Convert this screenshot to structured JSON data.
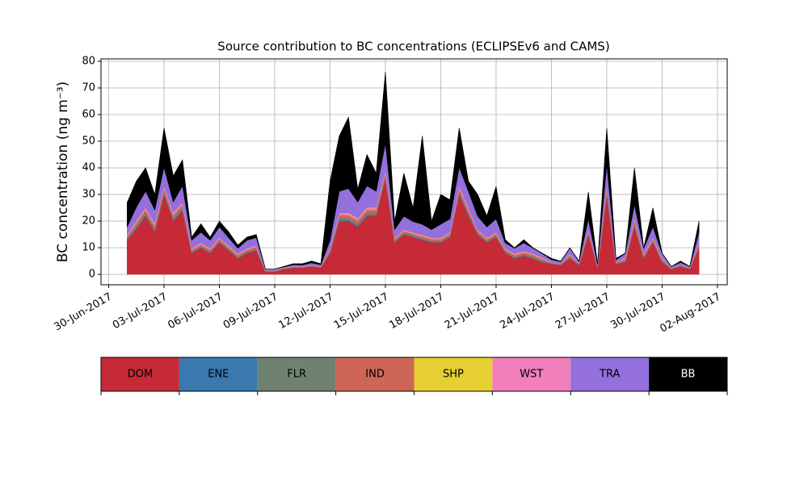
{
  "chart_data": {
    "type": "stacked_area",
    "title": "Source contribution to BC concentrations (ECLIPSEv6 and CAMS)",
    "y_label": "BC concentration (ng m⁻³)",
    "x": [
      "2017-07-01T00:00",
      "2017-07-01T12:00",
      "2017-07-02T00:00",
      "2017-07-02T12:00",
      "2017-07-03T00:00",
      "2017-07-03T12:00",
      "2017-07-04T00:00",
      "2017-07-04T12:00",
      "2017-07-05T00:00",
      "2017-07-05T12:00",
      "2017-07-06T00:00",
      "2017-07-06T12:00",
      "2017-07-07T00:00",
      "2017-07-07T12:00",
      "2017-07-08T00:00",
      "2017-07-08T12:00",
      "2017-07-09T00:00",
      "2017-07-09T12:00",
      "2017-07-10T00:00",
      "2017-07-10T12:00",
      "2017-07-11T00:00",
      "2017-07-11T12:00",
      "2017-07-12T00:00",
      "2017-07-12T12:00",
      "2017-07-13T00:00",
      "2017-07-13T12:00",
      "2017-07-14T00:00",
      "2017-07-14T12:00",
      "2017-07-15T00:00",
      "2017-07-15T12:00",
      "2017-07-16T00:00",
      "2017-07-16T12:00",
      "2017-07-17T00:00",
      "2017-07-17T12:00",
      "2017-07-18T00:00",
      "2017-07-18T12:00",
      "2017-07-19T00:00",
      "2017-07-19T12:00",
      "2017-07-20T00:00",
      "2017-07-20T12:00",
      "2017-07-21T00:00",
      "2017-07-21T12:00",
      "2017-07-22T00:00",
      "2017-07-22T12:00",
      "2017-07-23T00:00",
      "2017-07-23T12:00",
      "2017-07-24T00:00",
      "2017-07-24T12:00",
      "2017-07-25T00:00",
      "2017-07-25T12:00",
      "2017-07-26T00:00",
      "2017-07-26T12:00",
      "2017-07-27T00:00",
      "2017-07-27T12:00",
      "2017-07-28T00:00",
      "2017-07-28T12:00",
      "2017-07-29T00:00",
      "2017-07-29T12:00",
      "2017-07-30T00:00",
      "2017-07-30T12:00",
      "2017-07-31T00:00",
      "2017-07-31T12:00",
      "2017-08-01T00:00"
    ],
    "series": [
      {
        "name": "DOM",
        "color": "#c62a37",
        "values": [
          13,
          17,
          22,
          16,
          30,
          20,
          24,
          8,
          10,
          8,
          12,
          9,
          6,
          8,
          9,
          1,
          1,
          2,
          2.5,
          2.5,
          3,
          2.5,
          8,
          20,
          20,
          18,
          22,
          22,
          36,
          12,
          15,
          14,
          13,
          12,
          12,
          14,
          30,
          22,
          15,
          12,
          14,
          8,
          6,
          7,
          6,
          4.5,
          4,
          3.5,
          6,
          3.5,
          15,
          2.5,
          30,
          4,
          4.5,
          18,
          6,
          12,
          4.5,
          2,
          3,
          2,
          10
        ]
      },
      {
        "name": "ENE",
        "color": "#3a78b0",
        "values": [
          0.2,
          0.4,
          0.4,
          0.4,
          0.4,
          0.4,
          0.4,
          0.2,
          0.2,
          0.2,
          0.2,
          0.2,
          0.2,
          0.2,
          0.2,
          0.1,
          0.1,
          0.1,
          0.1,
          0.1,
          0.1,
          0.1,
          0.2,
          0.4,
          0.4,
          0.4,
          0.4,
          0.4,
          0.4,
          0.2,
          0.2,
          0.2,
          0.2,
          0.2,
          0.2,
          0.2,
          0.4,
          0.4,
          0.2,
          0.2,
          0.2,
          0.2,
          0.2,
          0.2,
          0.2,
          0.2,
          0.1,
          0.1,
          0.2,
          0.1,
          0.2,
          0.1,
          0.4,
          0.1,
          0.2,
          0.4,
          0.2,
          0.2,
          0.2,
          0.1,
          0.1,
          0.1,
          0.2
        ]
      },
      {
        "name": "FLR",
        "color": "#6f8170",
        "values": [
          0.4,
          0.7,
          0.7,
          0.7,
          0.7,
          0.7,
          0.7,
          0.4,
          0.4,
          0.4,
          0.4,
          0.4,
          0.4,
          0.4,
          0.4,
          0.1,
          0.1,
          0.1,
          0.1,
          0.1,
          0.1,
          0.1,
          0.4,
          0.7,
          0.7,
          0.7,
          0.7,
          0.7,
          0.7,
          0.4,
          0.4,
          0.4,
          0.4,
          0.4,
          0.4,
          0.4,
          0.7,
          0.7,
          0.4,
          0.4,
          0.4,
          0.4,
          0.4,
          0.4,
          0.4,
          0.4,
          0.1,
          0.1,
          0.4,
          0.1,
          0.4,
          0.1,
          0.7,
          0.1,
          0.4,
          0.7,
          0.4,
          0.4,
          0.4,
          0.1,
          0.1,
          0.1,
          0.4
        ]
      },
      {
        "name": "IND",
        "color": "#cd6656",
        "values": [
          0.7,
          1.2,
          1.2,
          1.2,
          1.2,
          1.2,
          1.2,
          0.7,
          0.7,
          0.7,
          0.7,
          0.7,
          0.7,
          0.7,
          0.7,
          0.2,
          0.2,
          0.2,
          0.2,
          0.2,
          0.2,
          0.2,
          0.7,
          1.2,
          1.2,
          1.2,
          1.2,
          1.2,
          1.2,
          0.7,
          0.7,
          0.7,
          0.7,
          0.7,
          0.7,
          0.7,
          1.2,
          1.2,
          0.7,
          0.7,
          0.7,
          0.7,
          0.7,
          0.7,
          0.7,
          0.7,
          0.2,
          0.2,
          0.7,
          0.2,
          0.7,
          0.2,
          1.2,
          0.2,
          0.7,
          1.2,
          0.7,
          0.7,
          0.7,
          0.2,
          0.2,
          0.2,
          0.7
        ]
      },
      {
        "name": "SHP",
        "color": "#e6cf30",
        "values": [
          0.1,
          0.1,
          0.1,
          0.1,
          0.1,
          0.1,
          0.1,
          0.1,
          0.1,
          0.1,
          0.1,
          0.1,
          0.1,
          0.1,
          0.1,
          0,
          0,
          0,
          0,
          0,
          0,
          0,
          0.1,
          0.1,
          0.1,
          0.1,
          0.1,
          0.1,
          0.1,
          0.1,
          0.1,
          0.1,
          0.1,
          0.1,
          0.1,
          0.1,
          0.1,
          0.1,
          0.1,
          0.1,
          0.1,
          0.1,
          0.1,
          0.1,
          0.1,
          0.1,
          0,
          0,
          0.1,
          0,
          0.1,
          0,
          0.1,
          0,
          0.1,
          0.1,
          0.1,
          0.1,
          0.1,
          0,
          0,
          0,
          0.1
        ]
      },
      {
        "name": "WST",
        "color": "#f07fba",
        "values": [
          0.4,
          0.8,
          0.8,
          0.8,
          0.8,
          0.8,
          0.8,
          0.4,
          0.4,
          0.4,
          0.4,
          0.4,
          0.4,
          0.4,
          0.4,
          0.1,
          0.1,
          0.1,
          0.1,
          0.1,
          0.1,
          0.1,
          0.4,
          0.8,
          0.8,
          0.8,
          0.8,
          0.8,
          0.8,
          0.4,
          0.4,
          0.4,
          0.4,
          0.4,
          0.4,
          0.4,
          0.8,
          0.8,
          0.4,
          0.4,
          0.4,
          0.4,
          0.4,
          0.4,
          0.4,
          0.4,
          0.1,
          0.1,
          0.4,
          0.1,
          0.4,
          0.1,
          0.8,
          0.1,
          0.4,
          0.8,
          0.4,
          0.4,
          0.4,
          0.1,
          0.1,
          0.1,
          0.4
        ]
      },
      {
        "name": "TRA",
        "color": "#9370db",
        "values": [
          3,
          5,
          6,
          5,
          7,
          4,
          6,
          3,
          4,
          3,
          4,
          3,
          2,
          3,
          3,
          0.5,
          0.5,
          0.3,
          0.6,
          0.5,
          0.8,
          0.6,
          3,
          8,
          9,
          6,
          8,
          6,
          10,
          3,
          5,
          4,
          4,
          3,
          5,
          5,
          7,
          6,
          5,
          4,
          5,
          2,
          2,
          3,
          2,
          1.5,
          1,
          0.8,
          2,
          0.8,
          4,
          0.8,
          8,
          1,
          1.5,
          5,
          2,
          4,
          1.5,
          0.4,
          1,
          0.4,
          4
        ]
      },
      {
        "name": "BB",
        "color": "#000000",
        "values": [
          9.2,
          9.8,
          8.8,
          5.8,
          14.8,
          9.8,
          9.8,
          1.2,
          3.2,
          1.2,
          2.2,
          2.2,
          1.2,
          1.2,
          1.2,
          0,
          0,
          0.2,
          0.4,
          0.5,
          0.7,
          0.4,
          22.2,
          20.8,
          26.8,
          4.8,
          11.8,
          6.8,
          26.8,
          3.2,
          16.2,
          5.2,
          33.2,
          3.2,
          11.2,
          7.2,
          14.8,
          3.8,
          8.2,
          4.2,
          12.2,
          1.2,
          0.2,
          1.2,
          0.2,
          0.2,
          0.5,
          0.2,
          0.2,
          0.2,
          10.2,
          0.2,
          13.8,
          0.5,
          0.2,
          13.8,
          0.2,
          7.2,
          0.2,
          0.1,
          0.5,
          0.1,
          4.2
        ]
      }
    ],
    "xlim": [
      "2017-06-29T14:00",
      "2017-08-02T12:40"
    ],
    "xticks": [
      {
        "value": "2017-06-30T00:00",
        "label": "30-Jun-2017"
      },
      {
        "value": "2017-07-03T00:00",
        "label": "03-Jul-2017"
      },
      {
        "value": "2017-07-06T00:00",
        "label": "06-Jul-2017"
      },
      {
        "value": "2017-07-09T00:00",
        "label": "09-Jul-2017"
      },
      {
        "value": "2017-07-12T00:00",
        "label": "12-Jul-2017"
      },
      {
        "value": "2017-07-15T00:00",
        "label": "15-Jul-2017"
      },
      {
        "value": "2017-07-18T00:00",
        "label": "18-Jul-2017"
      },
      {
        "value": "2017-07-21T00:00",
        "label": "21-Jul-2017"
      },
      {
        "value": "2017-07-24T00:00",
        "label": "24-Jul-2017"
      },
      {
        "value": "2017-07-27T00:00",
        "label": "27-Jul-2017"
      },
      {
        "value": "2017-07-30T00:00",
        "label": "30-Jul-2017"
      },
      {
        "value": "2017-08-02T00:00",
        "label": "02-Aug-2017"
      }
    ],
    "ylim": [
      -3.9,
      80.9
    ],
    "yticks": [
      0,
      10,
      20,
      30,
      40,
      50,
      60,
      70,
      80
    ],
    "grid": true,
    "legend": "bottom"
  }
}
